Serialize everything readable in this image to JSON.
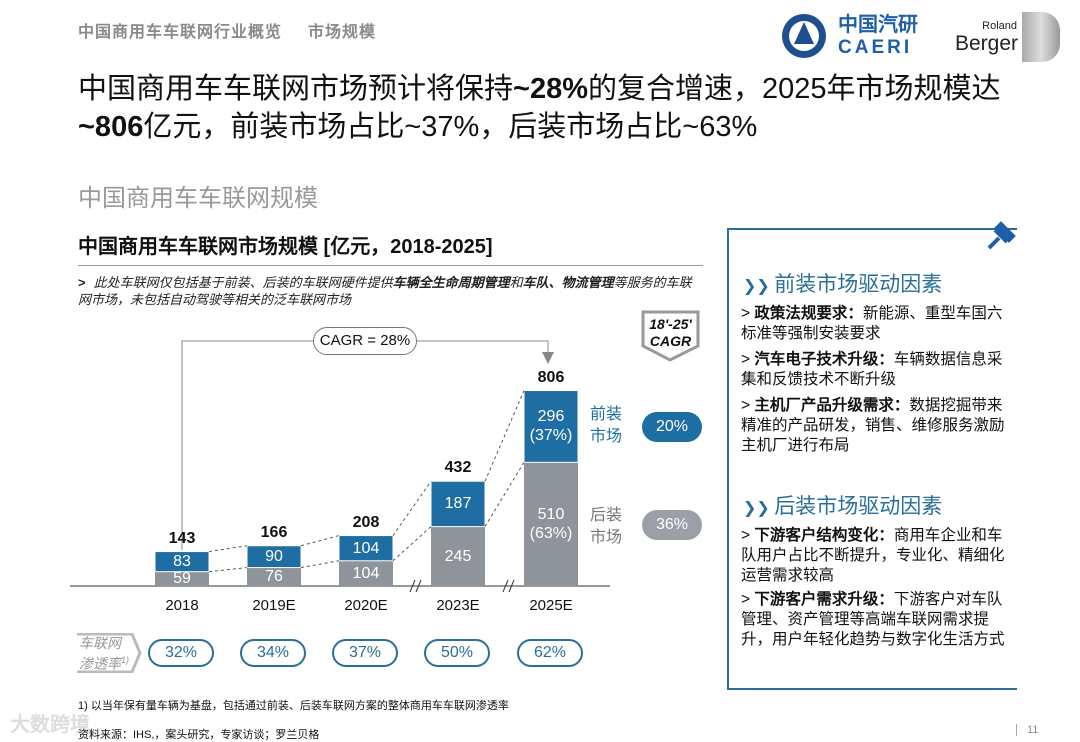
{
  "header": {
    "breadcrumb": [
      "中国商用车车联网行业概览",
      "市场规模"
    ],
    "logo_caeri": "中国汽研 CAERI",
    "logo_rb": "Roland Berger",
    "brand_color": "#1f5fa8"
  },
  "title": {
    "pre1": "中国商用车车联网市场预计将保持",
    "b1": "~28%",
    "mid1": "的复合增速，2025年市场规模达",
    "b2": "~806",
    "post": "亿元，前装市场占比~37%，后装市场占比~63%"
  },
  "subtitle": "中国商用车车联网规模",
  "chart_title": "中国商用车车联网市场规模 [亿元，2018-2025]",
  "note": {
    "arrow": ">",
    "t1": "此处车联网仅包括基于前装、后装的车联网硬件提供",
    "b1": "车辆全生命周期管理",
    "t2": "和",
    "b2": "车队、物流管理",
    "t3": "等服务的车联网市场，未包括自动驾驶等相关的泛车联网市场"
  },
  "cagr_label": "CAGR = 28%",
  "cagr_header": [
    "18'-25'",
    "CAGR"
  ],
  "chart_data": {
    "type": "bar",
    "stacked": true,
    "categories": [
      "2018",
      "2019E",
      "2020E",
      "2023E",
      "2025E"
    ],
    "series": [
      {
        "name": "后装市场",
        "values": [
          59,
          76,
          104,
          245,
          510
        ],
        "color": "#8e9499"
      },
      {
        "name": "前装市场",
        "values": [
          83,
          90,
          104,
          187,
          296
        ],
        "color": "#1f6ea3"
      }
    ],
    "totals": [
      143,
      166,
      208,
      432,
      806
    ],
    "share_labels": {
      "前装": "(37%)",
      "后装": "(63%)"
    },
    "series_cagr": {
      "前装市场": "20%",
      "后装市场": "36%"
    },
    "axis_break_after": "2020E"
  },
  "legend": {
    "front": [
      "前装",
      "市场"
    ],
    "rear": [
      "后装",
      "市场"
    ]
  },
  "penetration": {
    "label": [
      "车联网",
      "渗透率"
    ],
    "sup": "1)",
    "values": [
      "32%",
      "34%",
      "37%",
      "50%",
      "62%"
    ]
  },
  "panel": {
    "front_heading": "前装市场驱动因素",
    "front_items": [
      {
        "b": "政策法规要求：",
        "t": "新能源、重型车国六标准等强制安装要求"
      },
      {
        "b": "汽车电子技术升级：",
        "t": "车辆数据信息采集和反馈技术不断升级"
      },
      {
        "b": "主机厂产品升级需求：",
        "t": "数据挖掘带来精准的产品研发，销售、维修服务激励主机厂进行布局"
      }
    ],
    "rear_heading": "后装市场驱动因素",
    "rear_items": [
      {
        "b": "下游客户结构变化：",
        "t": "商用车企业和车队用户占比不断提升，专业化、精细化运营需求较高"
      },
      {
        "b": "下游客户需求升级：",
        "t": "下游客户对车队管理、资产管理等高端车联网需求提升，用户年轻化趋势与数字化生活方式"
      }
    ]
  },
  "footnote": "1) 以当年保有量车辆为基盘，包括通过前装、后装车联网方案的整体商用车车联网渗透率",
  "source": "资料来源：IHS,，案头研究，专家访谈；罗兰贝格",
  "watermark": "大数跨境",
  "page_number": "11"
}
